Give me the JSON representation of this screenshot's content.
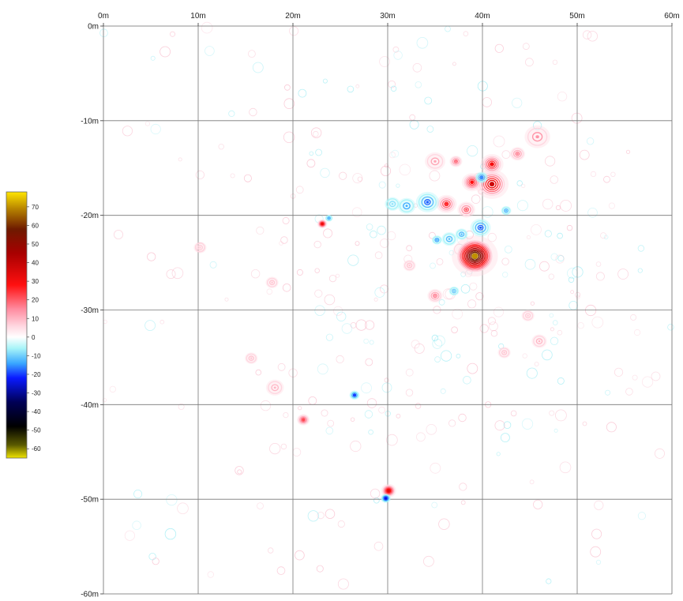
{
  "chart_data": {
    "type": "heatmap",
    "title": "",
    "x_axis": {
      "range": [
        0,
        60
      ],
      "ticks": [
        0,
        10,
        20,
        30,
        40,
        50,
        60
      ],
      "tick_labels": [
        "0m",
        "10m",
        "20m",
        "30m",
        "40m",
        "50m",
        "60m"
      ],
      "position": "top"
    },
    "y_axis": {
      "range": [
        0,
        -60
      ],
      "ticks": [
        0,
        -10,
        -20,
        -30,
        -40,
        -50,
        -60
      ],
      "tick_labels": [
        "0m",
        "-10m",
        "-20m",
        "-30m",
        "-40m",
        "-50m",
        "-60m"
      ],
      "position": "left"
    },
    "grid": true,
    "colorbar": {
      "placement": "left",
      "range": [
        -65,
        78
      ],
      "ticks": [
        70,
        60,
        50,
        40,
        30,
        20,
        10,
        0,
        -10,
        -20,
        -30,
        -40,
        -50,
        -60
      ],
      "tick_labels": [
        "70",
        "60",
        "50",
        "40",
        "30",
        "20",
        "10",
        "0",
        "-10",
        "-20",
        "-30",
        "-40",
        "-50",
        "-60"
      ],
      "stops": [
        {
          "value": 78,
          "color": "#ffe600"
        },
        {
          "value": 68,
          "color": "#b07a00"
        },
        {
          "value": 58,
          "color": "#6e1a00"
        },
        {
          "value": 45,
          "color": "#a80000"
        },
        {
          "value": 28,
          "color": "#ff1010"
        },
        {
          "value": 15,
          "color": "#ff8ca0"
        },
        {
          "value": 6,
          "color": "#ffd6e0"
        },
        {
          "value": 0,
          "color": "#ffffff"
        },
        {
          "value": -6,
          "color": "#a8f4f8"
        },
        {
          "value": -14,
          "color": "#3aa8ff"
        },
        {
          "value": -22,
          "color": "#0a1aff"
        },
        {
          "value": -35,
          "color": "#000055"
        },
        {
          "value": -48,
          "color": "#000000"
        },
        {
          "value": -58,
          "color": "#5a5a00"
        },
        {
          "value": -65,
          "color": "#f0e400"
        }
      ]
    },
    "anomalies": [
      {
        "x": 39.2,
        "y": -24.3,
        "value": 70,
        "r": 1.8
      },
      {
        "x": 41.0,
        "y": -16.7,
        "value": 38,
        "r": 1.3
      },
      {
        "x": 41.0,
        "y": -14.6,
        "value": 30,
        "r": 0.9
      },
      {
        "x": 38.9,
        "y": -16.5,
        "value": 28,
        "r": 0.8
      },
      {
        "x": 36.2,
        "y": -18.8,
        "value": 26,
        "r": 0.8
      },
      {
        "x": 38.3,
        "y": -19.4,
        "value": 20,
        "r": 0.7
      },
      {
        "x": 35.0,
        "y": -14.3,
        "value": 12,
        "r": 0.8
      },
      {
        "x": 37.2,
        "y": -14.3,
        "value": 18,
        "r": 0.5
      },
      {
        "x": 39.9,
        "y": -16.0,
        "value": -16,
        "r": 0.5
      },
      {
        "x": 34.2,
        "y": -18.6,
        "value": -18,
        "r": 0.9
      },
      {
        "x": 32.0,
        "y": -19.0,
        "value": -14,
        "r": 0.7
      },
      {
        "x": 30.5,
        "y": -18.8,
        "value": -8,
        "r": 0.6
      },
      {
        "x": 39.8,
        "y": -21.3,
        "value": -18,
        "r": 0.8
      },
      {
        "x": 36.5,
        "y": -22.5,
        "value": -12,
        "r": 0.6
      },
      {
        "x": 37.8,
        "y": -22.0,
        "value": -12,
        "r": 0.5
      },
      {
        "x": 43.7,
        "y": -13.5,
        "value": 16,
        "r": 0.6
      },
      {
        "x": 45.8,
        "y": -11.7,
        "value": 14,
        "r": 1.0
      },
      {
        "x": 42.5,
        "y": -19.5,
        "value": -12,
        "r": 0.4
      },
      {
        "x": 35.0,
        "y": -28.5,
        "value": 16,
        "r": 0.6
      },
      {
        "x": 35.2,
        "y": -22.6,
        "value": -14,
        "r": 0.4
      },
      {
        "x": 37.0,
        "y": -28.0,
        "value": -10,
        "r": 0.4
      },
      {
        "x": 23.1,
        "y": -20.9,
        "value": 32,
        "r": 0.4
      },
      {
        "x": 23.8,
        "y": -20.3,
        "value": -12,
        "r": 0.3
      },
      {
        "x": 26.5,
        "y": -39.0,
        "value": -20,
        "r": 0.4
      },
      {
        "x": 21.1,
        "y": -41.6,
        "value": 22,
        "r": 0.5
      },
      {
        "x": 30.1,
        "y": -49.1,
        "value": 34,
        "r": 0.6
      },
      {
        "x": 29.8,
        "y": -49.9,
        "value": -24,
        "r": 0.4
      },
      {
        "x": 18.1,
        "y": -38.2,
        "value": 10,
        "r": 0.7
      },
      {
        "x": 15.6,
        "y": -35.1,
        "value": 8,
        "r": 0.5
      },
      {
        "x": 46.0,
        "y": -33.3,
        "value": 10,
        "r": 0.6
      },
      {
        "x": 10.2,
        "y": -23.4,
        "value": 7,
        "r": 0.5
      },
      {
        "x": 17.8,
        "y": -27.1,
        "value": 8,
        "r": 0.5
      },
      {
        "x": 44.8,
        "y": -30.6,
        "value": 7,
        "r": 0.5
      },
      {
        "x": 42.3,
        "y": -34.5,
        "value": 8,
        "r": 0.5
      },
      {
        "x": 32.3,
        "y": -25.3,
        "value": 8,
        "r": 0.5
      }
    ]
  }
}
